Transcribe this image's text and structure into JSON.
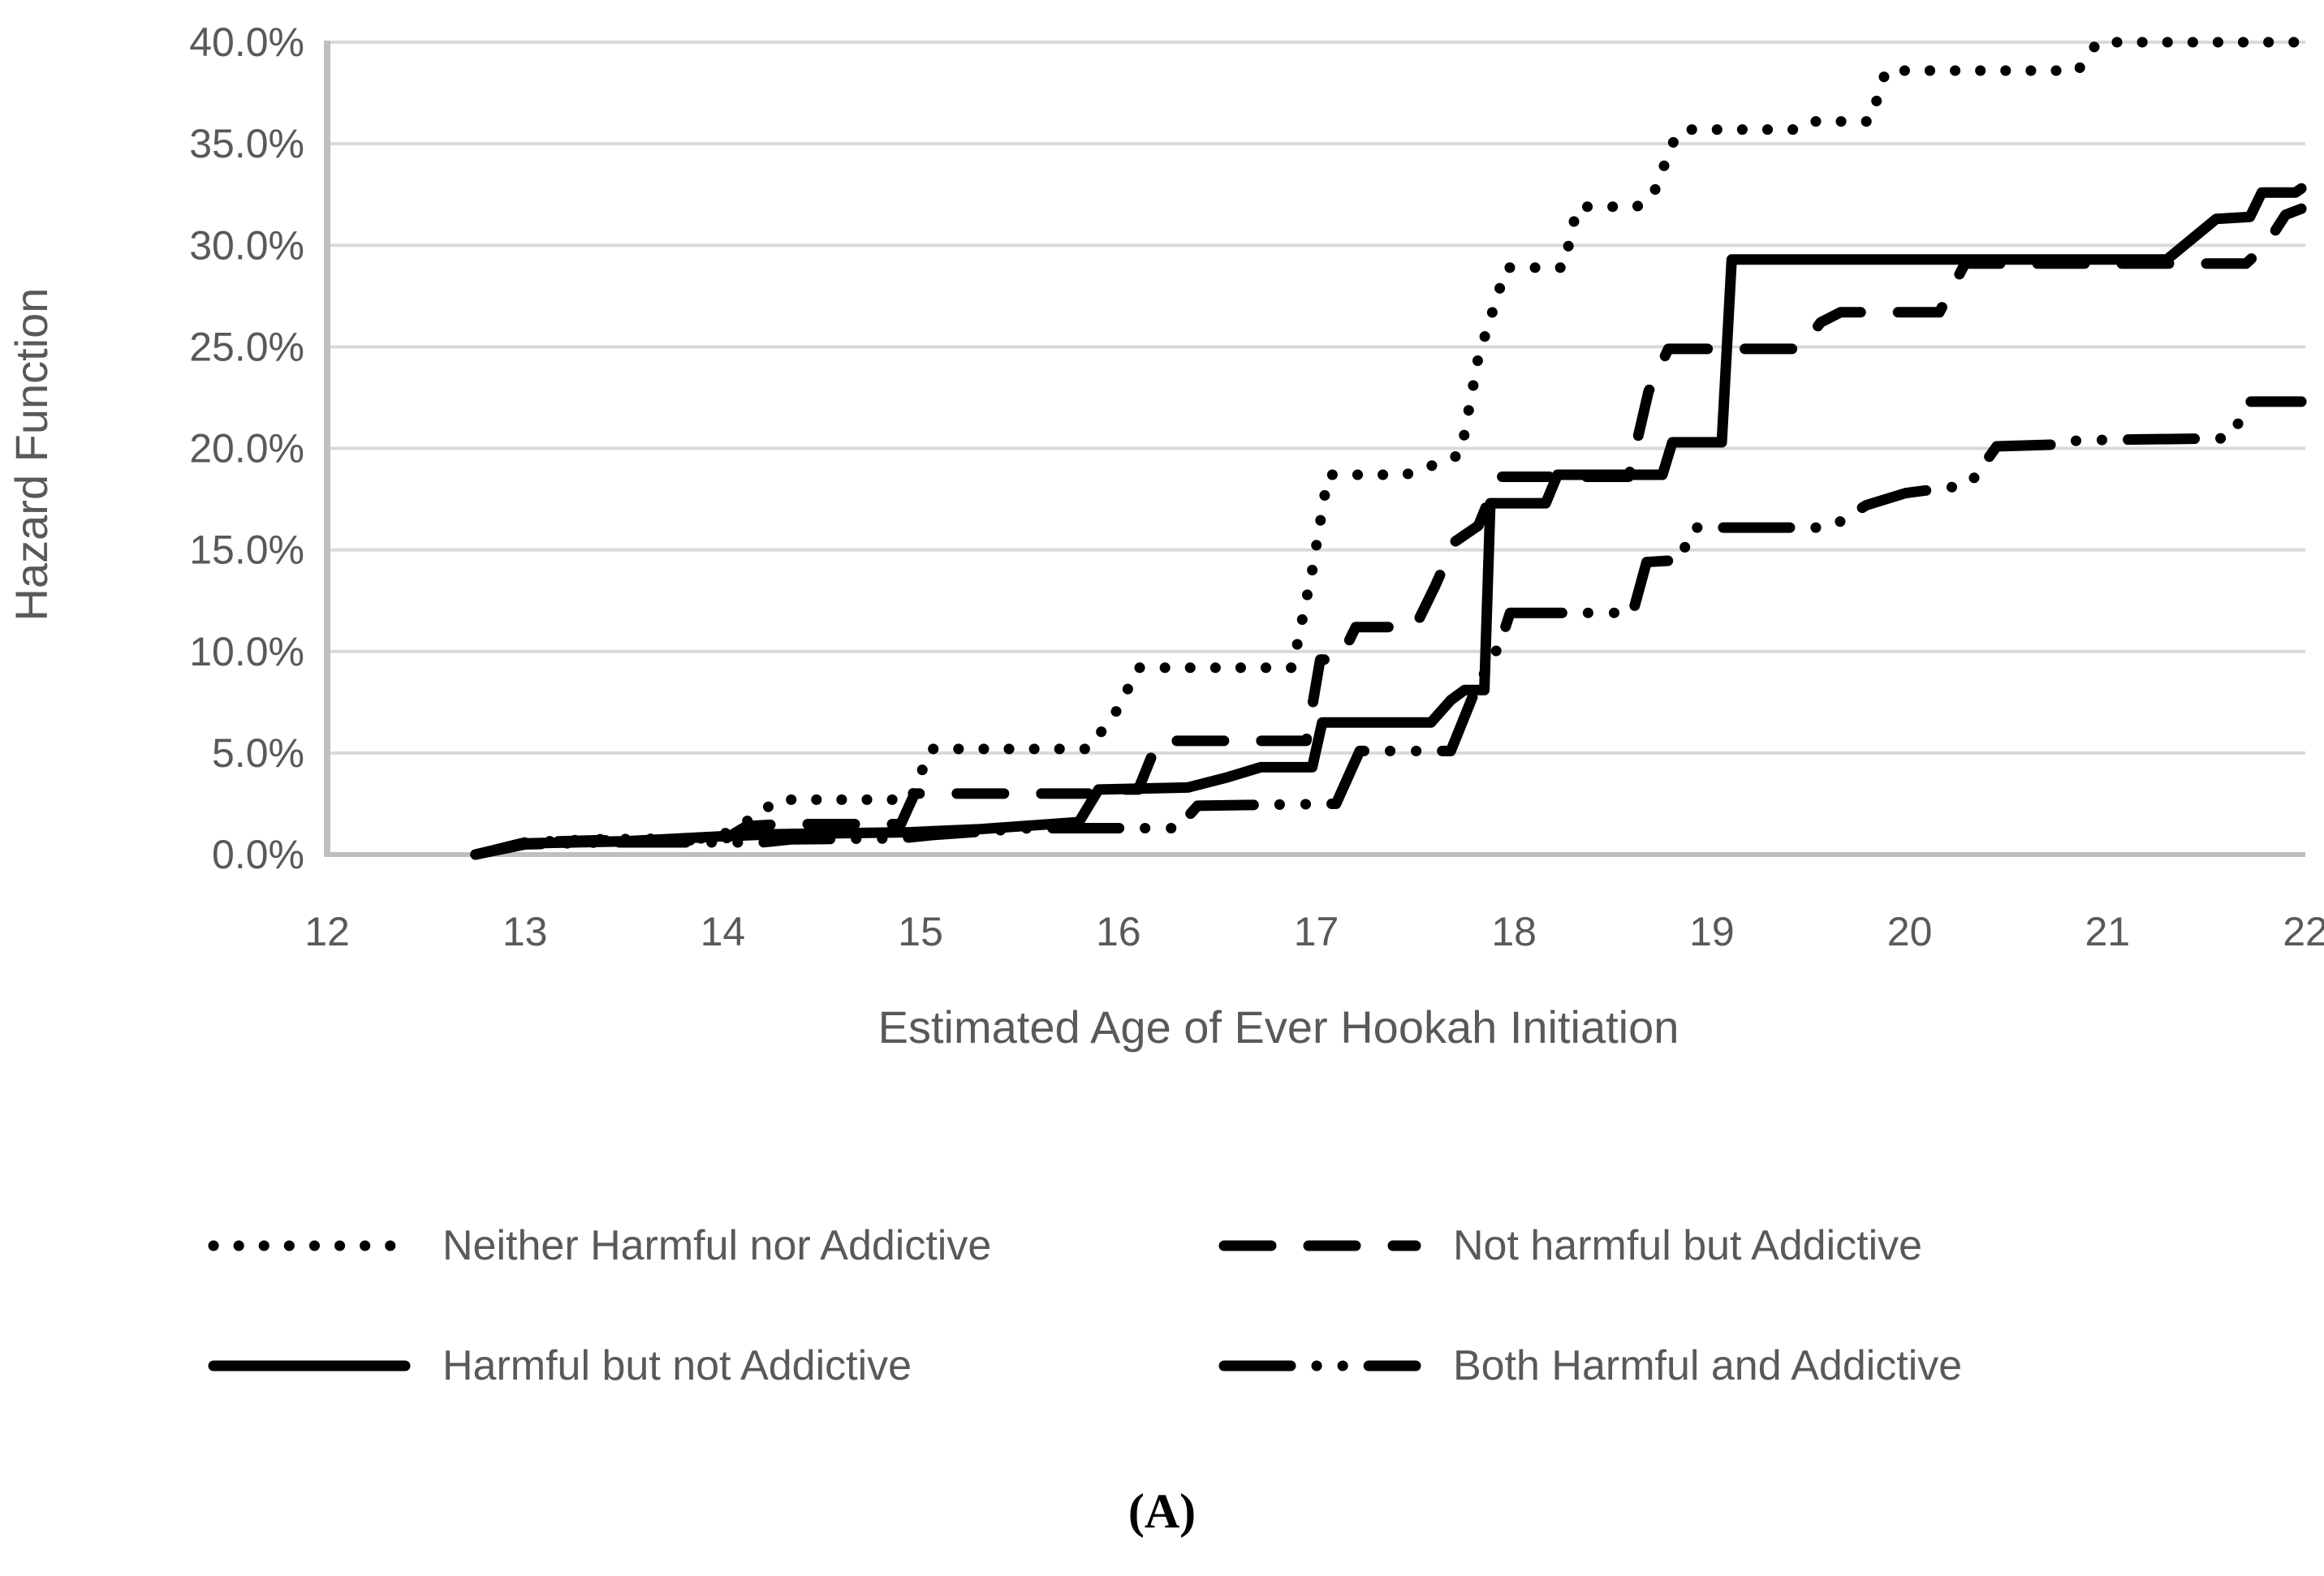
{
  "caption": "(A)",
  "colors": {
    "line": "#000000",
    "grid": "#d9d9d9",
    "axis": "#bfbfbf",
    "text": "#595959"
  },
  "chart_data": {
    "type": "line",
    "title": "",
    "xlabel": "Estimated Age of Ever Hookah Initiation",
    "ylabel": "Hazard Function",
    "xlim": [
      12,
      22
    ],
    "ylim_percent": [
      0,
      40
    ],
    "grid": "horizontal",
    "legend_position": "bottom",
    "x_tick_labels": [
      "12",
      "13",
      "14",
      "15",
      "16",
      "17",
      "18",
      "19",
      "20",
      "21",
      "22"
    ],
    "y_tick_labels": [
      "40.0%",
      "35.0%",
      "30.0%",
      "25.0%",
      "20.0%",
      "15.0%",
      "10.0%",
      "5.0%",
      "0.0%"
    ],
    "series": [
      {
        "name": "Neither Harmful nor Addictive",
        "style": "dotted",
        "points": [
          [
            12.75,
            0.0
          ],
          [
            12.9,
            0.3
          ],
          [
            13.0,
            0.6
          ],
          [
            13.35,
            0.75
          ],
          [
            13.95,
            0.8
          ],
          [
            14.05,
            1.2
          ],
          [
            14.18,
            2.0
          ],
          [
            14.28,
            2.7
          ],
          [
            14.95,
            2.7
          ],
          [
            15.05,
            5.2
          ],
          [
            15.85,
            5.2
          ],
          [
            16.0,
            7.2
          ],
          [
            16.1,
            9.2
          ],
          [
            16.88,
            9.2
          ],
          [
            16.98,
            14.0
          ],
          [
            17.06,
            18.7
          ],
          [
            17.45,
            18.7
          ],
          [
            17.6,
            19.2
          ],
          [
            17.73,
            19.7
          ],
          [
            17.82,
            24.5
          ],
          [
            17.96,
            28.9
          ],
          [
            18.25,
            28.9
          ],
          [
            18.32,
            31.9
          ],
          [
            18.62,
            31.9
          ],
          [
            18.7,
            32.4
          ],
          [
            18.8,
            35.0
          ],
          [
            18.85,
            35.7
          ],
          [
            19.45,
            35.7
          ],
          [
            19.52,
            36.1
          ],
          [
            19.8,
            36.1
          ],
          [
            19.88,
            38.6
          ],
          [
            20.85,
            38.6
          ],
          [
            20.95,
            40.0
          ],
          [
            21.98,
            40.0
          ]
        ]
      },
      {
        "name": "Not harmful but Addictive",
        "style": "dashed",
        "points": [
          [
            12.75,
            0.0
          ],
          [
            13.0,
            0.6
          ],
          [
            13.35,
            0.7
          ],
          [
            14.0,
            0.7
          ],
          [
            14.12,
            1.4
          ],
          [
            14.3,
            1.5
          ],
          [
            14.9,
            1.5
          ],
          [
            14.97,
            3.0
          ],
          [
            15.85,
            3.0
          ],
          [
            15.95,
            3.2
          ],
          [
            16.1,
            3.2
          ],
          [
            16.2,
            5.6
          ],
          [
            16.95,
            5.6
          ],
          [
            17.02,
            9.6
          ],
          [
            17.12,
            9.6
          ],
          [
            17.2,
            11.2
          ],
          [
            17.5,
            11.2
          ],
          [
            17.6,
            13.2
          ],
          [
            17.7,
            15.4
          ],
          [
            17.82,
            16.2
          ],
          [
            17.92,
            18.6
          ],
          [
            18.58,
            18.6
          ],
          [
            18.68,
            22.8
          ],
          [
            18.78,
            24.9
          ],
          [
            19.45,
            24.9
          ],
          [
            19.55,
            26.2
          ],
          [
            19.65,
            26.7
          ],
          [
            20.15,
            26.7
          ],
          [
            20.28,
            29.1
          ],
          [
            21.7,
            29.1
          ],
          [
            21.8,
            30.0
          ],
          [
            21.9,
            31.5
          ],
          [
            21.98,
            31.8
          ]
        ]
      },
      {
        "name": "Harmful but not Addictive",
        "style": "solid",
        "points": [
          [
            12.75,
            0.0
          ],
          [
            13.0,
            0.55
          ],
          [
            13.5,
            0.65
          ],
          [
            14.0,
            0.9
          ],
          [
            14.25,
            1.0
          ],
          [
            14.95,
            1.1
          ],
          [
            15.3,
            1.25
          ],
          [
            15.8,
            1.6
          ],
          [
            15.9,
            3.2
          ],
          [
            16.35,
            3.3
          ],
          [
            16.55,
            3.8
          ],
          [
            16.72,
            4.3
          ],
          [
            16.98,
            4.3
          ],
          [
            17.03,
            6.5
          ],
          [
            17.58,
            6.5
          ],
          [
            17.68,
            7.6
          ],
          [
            17.75,
            8.1
          ],
          [
            17.85,
            8.1
          ],
          [
            17.88,
            17.3
          ],
          [
            18.16,
            17.3
          ],
          [
            18.22,
            18.7
          ],
          [
            18.75,
            18.7
          ],
          [
            18.8,
            20.3
          ],
          [
            19.05,
            20.3
          ],
          [
            19.1,
            29.3
          ],
          [
            21.3,
            29.3
          ],
          [
            21.55,
            31.3
          ],
          [
            21.72,
            31.4
          ],
          [
            21.78,
            32.6
          ],
          [
            21.95,
            32.6
          ],
          [
            21.98,
            32.8
          ]
        ]
      },
      {
        "name": "Both Harmful and Addictive",
        "style": "dash-dot-dot",
        "points": [
          [
            12.75,
            0.0
          ],
          [
            13.0,
            0.5
          ],
          [
            13.4,
            0.6
          ],
          [
            14.2,
            0.6
          ],
          [
            14.35,
            0.75
          ],
          [
            14.9,
            0.8
          ],
          [
            15.05,
            0.95
          ],
          [
            15.55,
            1.3
          ],
          [
            16.3,
            1.3
          ],
          [
            16.4,
            2.4
          ],
          [
            17.1,
            2.5
          ],
          [
            17.22,
            5.1
          ],
          [
            17.68,
            5.1
          ],
          [
            17.8,
            8.0
          ],
          [
            17.93,
            10.4
          ],
          [
            17.98,
            11.9
          ],
          [
            18.6,
            11.9
          ],
          [
            18.67,
            14.4
          ],
          [
            18.84,
            14.5
          ],
          [
            18.9,
            16.1
          ],
          [
            19.6,
            16.1
          ],
          [
            19.78,
            17.2
          ],
          [
            19.98,
            17.8
          ],
          [
            20.3,
            18.2
          ],
          [
            20.44,
            20.1
          ],
          [
            20.78,
            20.2
          ],
          [
            20.85,
            20.4
          ],
          [
            21.62,
            20.5
          ],
          [
            21.72,
            22.3
          ],
          [
            21.98,
            22.3
          ]
        ]
      }
    ]
  }
}
